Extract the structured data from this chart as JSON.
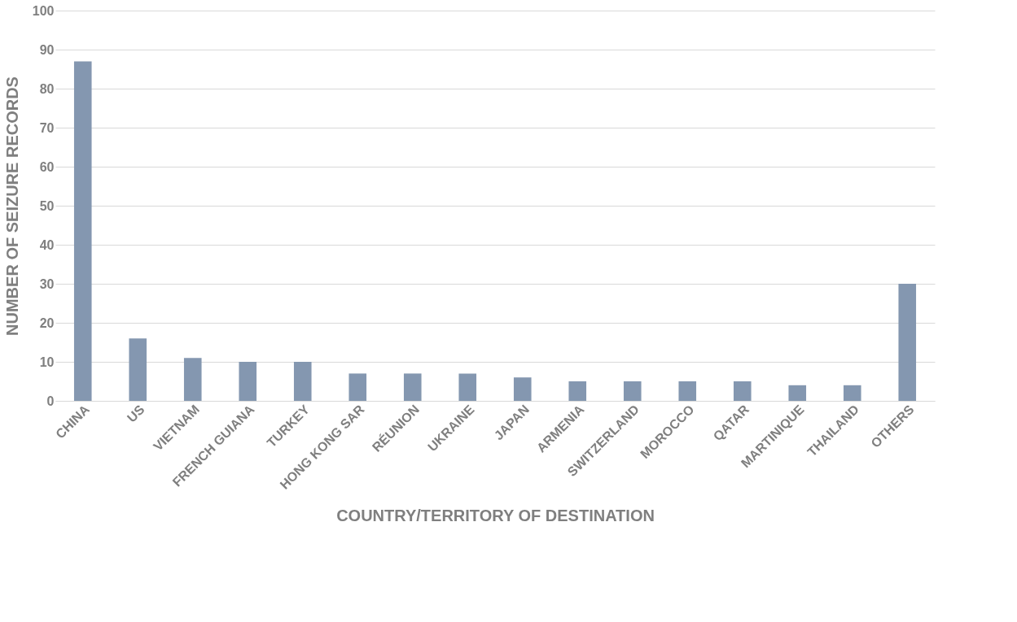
{
  "chart_data": {
    "type": "bar",
    "xlabel": "COUNTRY/TERRITORY OF DESTINATION",
    "ylabel": "NUMBER OF SEIZURE RECORDS",
    "categories": [
      "CHINA",
      "US",
      "VIETNAM",
      "FRENCH GUIANA",
      "TURKEY",
      "HONG KONG SAR",
      "RÉUNION",
      "UKRAINE",
      "JAPAN",
      "ARMENIA",
      "SWITZERLAND",
      "MOROCCO",
      "QATAR",
      "MARTINIQUE",
      "THAILAND",
      "OTHERS"
    ],
    "values": [
      87,
      16,
      11,
      10,
      10,
      7,
      7,
      7,
      6,
      5,
      5,
      5,
      5,
      4,
      4,
      30
    ],
    "color": "#8497b0",
    "ylim": [
      0,
      100
    ],
    "yticks": [
      0,
      10,
      20,
      30,
      40,
      50,
      60,
      70,
      80,
      90,
      100
    ],
    "grid": "y"
  }
}
